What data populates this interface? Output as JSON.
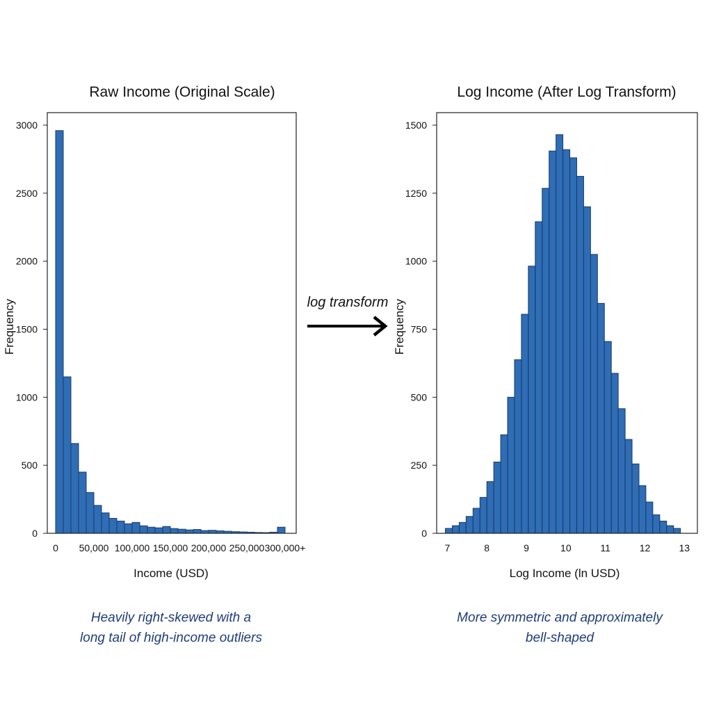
{
  "chart_data": [
    {
      "type": "bar",
      "title": "Raw Income (Original Scale)",
      "xlabel": "Income (USD)",
      "ylabel": "Frequency",
      "caption_lines": [
        "Heavily right-skewed with a",
        "long tail of high-income outliers"
      ],
      "xlim": [
        0,
        300000
      ],
      "ylim": [
        0,
        3000
      ],
      "x_ticks": [
        {
          "value": 0,
          "label": "0"
        },
        {
          "value": 50000,
          "label": "50,000"
        },
        {
          "value": 100000,
          "label": "100,000"
        },
        {
          "value": 150000,
          "label": "150,000"
        },
        {
          "value": 200000,
          "label": "200,000"
        },
        {
          "value": 250000,
          "label": "250,000"
        },
        {
          "value": 300000,
          "label": "300,000+"
        }
      ],
      "y_ticks": [
        0,
        500,
        1000,
        1500,
        2000,
        2500,
        3000
      ],
      "bin_edges": [
        0,
        10000,
        20000,
        30000,
        40000,
        50000,
        60000,
        70000,
        80000,
        90000,
        100000,
        110000,
        120000,
        130000,
        140000,
        150000,
        160000,
        170000,
        180000,
        190000,
        200000,
        210000,
        220000,
        230000,
        240000,
        250000,
        260000,
        270000,
        280000,
        290000,
        300000
      ],
      "values": [
        2960,
        1150,
        660,
        450,
        300,
        205,
        150,
        110,
        90,
        70,
        80,
        55,
        45,
        40,
        50,
        35,
        30,
        25,
        28,
        20,
        22,
        18,
        15,
        12,
        10,
        8,
        6,
        5,
        8,
        45
      ]
    },
    {
      "type": "bar",
      "title": "Log Income (After Log Transform)",
      "xlabel": "Log Income (ln USD)",
      "ylabel": "Frequency",
      "caption_lines": [
        "More symmetric and approximately",
        "bell-shaped"
      ],
      "xlim": [
        6.8,
        13.1
      ],
      "ylim": [
        0,
        1500
      ],
      "x_ticks": [
        {
          "value": 7,
          "label": "7"
        },
        {
          "value": 8,
          "label": "8"
        },
        {
          "value": 9,
          "label": "9"
        },
        {
          "value": 10,
          "label": "10"
        },
        {
          "value": 11,
          "label": "11"
        },
        {
          "value": 12,
          "label": "12"
        },
        {
          "value": 13,
          "label": "13"
        }
      ],
      "y_ticks": [
        0,
        250,
        500,
        750,
        1000,
        1250,
        1500
      ],
      "bin_edges": [
        6.95,
        7.125,
        7.3,
        7.475,
        7.65,
        7.825,
        8.0,
        8.175,
        8.35,
        8.525,
        8.7,
        8.875,
        9.05,
        9.225,
        9.4,
        9.575,
        9.75,
        9.925,
        10.1,
        10.275,
        10.45,
        10.625,
        10.8,
        10.975,
        11.15,
        11.325,
        11.5,
        11.675,
        11.85,
        12.025,
        12.2,
        12.375,
        12.55,
        12.725,
        12.9
      ],
      "values": [
        18,
        28,
        40,
        62,
        92,
        132,
        190,
        262,
        362,
        500,
        638,
        805,
        982,
        1145,
        1268,
        1405,
        1465,
        1410,
        1380,
        1312,
        1200,
        1025,
        845,
        705,
        588,
        458,
        345,
        255,
        175,
        115,
        68,
        45,
        28,
        18
      ]
    }
  ],
  "arrow": {
    "label": "log transform"
  }
}
